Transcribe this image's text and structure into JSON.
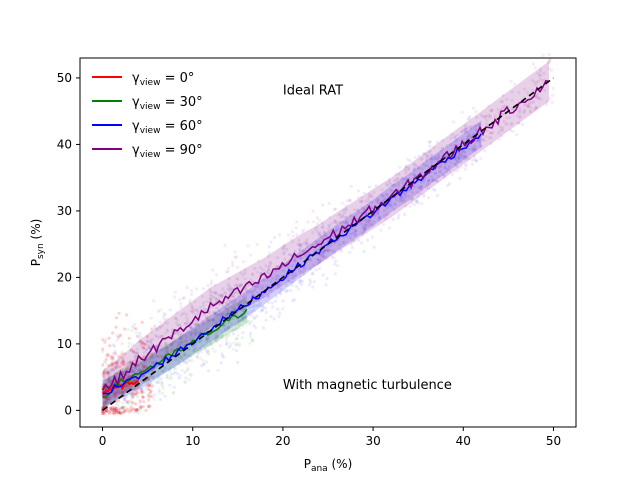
{
  "chart_data": {
    "type": "line",
    "xlabel": {
      "main": "P",
      "sub": "ana",
      "unit": " (%)"
    },
    "ylabel": {
      "main": "P",
      "sub": "syn",
      "unit": " (%)"
    },
    "xlim": [
      -2.5,
      52.5
    ],
    "ylim": [
      -2.5,
      53
    ],
    "xticks": [
      0,
      10,
      20,
      30,
      40,
      50
    ],
    "yticks": [
      0,
      10,
      20,
      30,
      40,
      50
    ],
    "grid": false,
    "legend_position": "top-left",
    "annotations": [
      "Ideal RAT",
      "With magnetic turbulence"
    ],
    "series": [
      {
        "name": {
          "main": "γ",
          "sub": "view",
          "rest": " = 0°"
        },
        "color": "#ff0000",
        "x": [
          0,
          0.5,
          1,
          1.5,
          2,
          2.5,
          3,
          3.5,
          4
        ],
        "y": [
          2.8,
          3.0,
          3.2,
          3.4,
          3.6,
          3.8,
          4.0,
          4.2,
          4.4
        ],
        "scatter_x_range": [
          0,
          5.5
        ],
        "scatter_y_range": [
          -0.5,
          12
        ]
      },
      {
        "name": {
          "main": "γ",
          "sub": "view",
          "rest": " = 30°"
        },
        "color": "#008000",
        "x": [
          0,
          1,
          2,
          3,
          4,
          5,
          6,
          7,
          8,
          9,
          10,
          11,
          12,
          13,
          14,
          15,
          16
        ],
        "y": [
          2.0,
          3.2,
          4.2,
          4.8,
          5.6,
          6.3,
          7.0,
          7.8,
          8.6,
          9.4,
          10.2,
          11.0,
          11.8,
          12.6,
          13.5,
          14.3,
          15.2
        ],
        "scatter_x_range": [
          0,
          17
        ],
        "scatter_y_range": [
          0,
          20
        ]
      },
      {
        "name": {
          "main": "γ",
          "sub": "view",
          "rest": " = 60°"
        },
        "color": "#0000ff",
        "x": [
          0,
          2,
          4,
          6,
          8,
          10,
          12,
          14,
          16,
          18,
          20,
          22,
          24,
          26,
          28,
          30,
          32,
          34,
          36,
          38,
          40,
          42
        ],
        "y": [
          2.5,
          3.8,
          5.0,
          6.8,
          8.5,
          10.4,
          12.3,
          14.2,
          16.0,
          18.0,
          20.0,
          22.0,
          24.0,
          26.0,
          27.8,
          29.7,
          31.8,
          33.6,
          35.7,
          37.6,
          39.6,
          41.6
        ],
        "scatter_x_range": [
          0,
          42
        ],
        "scatter_y_range": [
          0,
          45
        ]
      },
      {
        "name": {
          "main": "γ",
          "sub": "view",
          "rest": " = 90°"
        },
        "color": "#800080",
        "x": [
          0,
          2,
          4,
          6,
          8,
          10,
          12,
          14,
          16,
          18,
          20,
          22,
          24,
          26,
          28,
          30,
          32,
          34,
          36,
          38,
          40,
          42,
          44,
          46,
          48,
          49.5
        ],
        "y": [
          3.0,
          5.0,
          7.5,
          9.5,
          11.5,
          13.5,
          15.5,
          17.0,
          18.5,
          20.0,
          21.8,
          23.5,
          25.0,
          26.8,
          28.5,
          30.3,
          32.0,
          34.0,
          36.0,
          38.0,
          40.0,
          42.0,
          44.0,
          46.0,
          48.0,
          49.5
        ],
        "scatter_x_range": [
          0,
          50
        ],
        "scatter_y_range": [
          0,
          50
        ]
      },
      {
        "name": "",
        "color": "#000000",
        "dashed": true,
        "x": [
          0,
          50
        ],
        "y": [
          0,
          50
        ]
      }
    ]
  }
}
